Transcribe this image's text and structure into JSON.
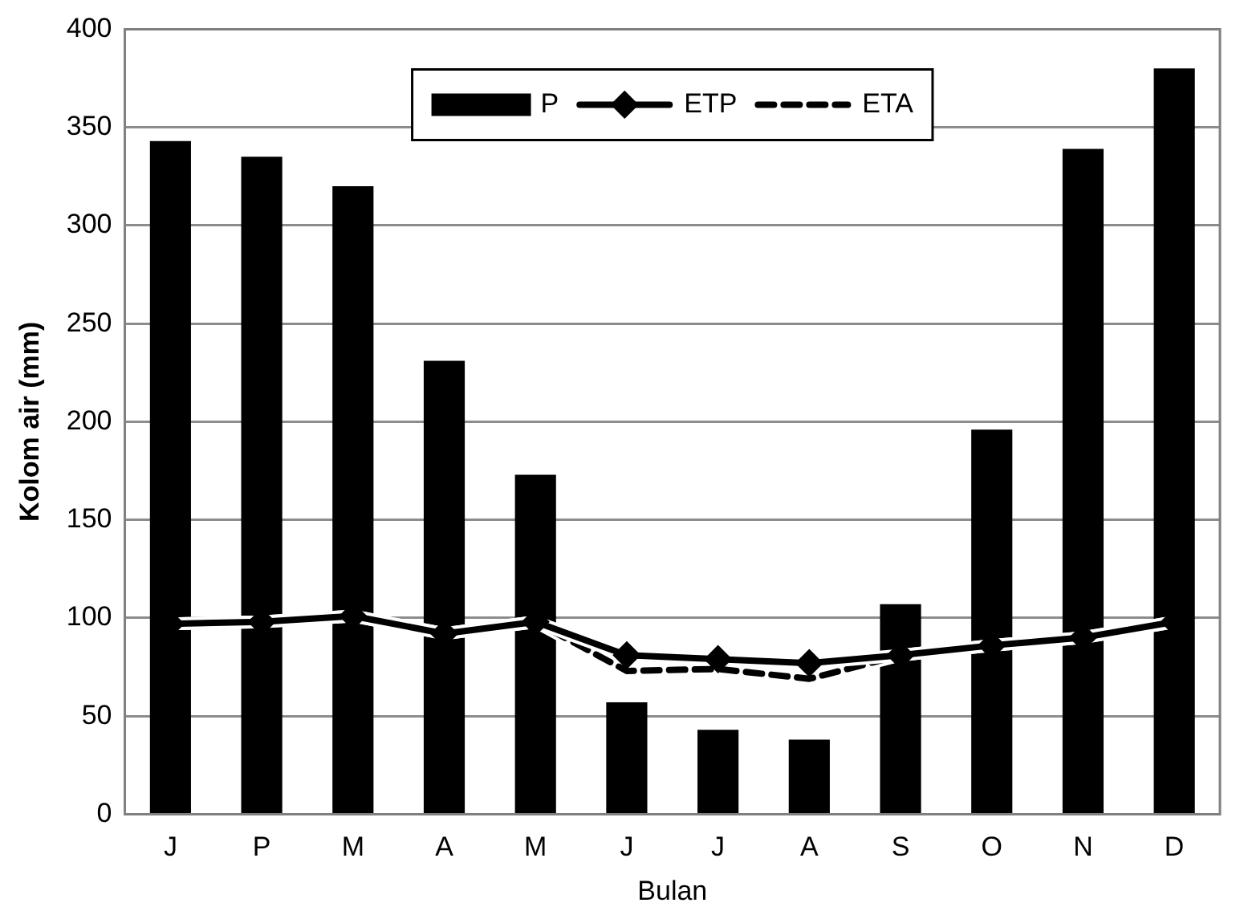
{
  "chart_data": {
    "type": "bar",
    "xlabel": "Bulan",
    "ylabel": "Kolom air (mm)",
    "categories": [
      "J",
      "P",
      "M",
      "A",
      "M",
      "J",
      "J",
      "A",
      "S",
      "O",
      "N",
      "D"
    ],
    "series": [
      {
        "name": "P",
        "color": "#000000",
        "values": [
          343,
          335,
          320,
          231,
          173,
          57,
          43,
          38,
          107,
          196,
          339,
          380
        ]
      },
      {
        "name": "ETP",
        "type": "line",
        "color": "#000000",
        "marker": "diamond",
        "line_style": "solid",
        "values": [
          97,
          98,
          101,
          92,
          98,
          81,
          79,
          77,
          81,
          86,
          90,
          98
        ]
      },
      {
        "name": "ETA",
        "type": "line",
        "color": "#000000",
        "marker": "none",
        "line_style": "dashed",
        "values": [
          97,
          98,
          101,
          92,
          98,
          73,
          74,
          69,
          81,
          86,
          90,
          98
        ]
      }
    ],
    "ylim": [
      0,
      400
    ],
    "yticks": [
      0,
      50,
      100,
      150,
      200,
      250,
      300,
      350,
      400
    ],
    "grid": "y",
    "legend": "top"
  }
}
